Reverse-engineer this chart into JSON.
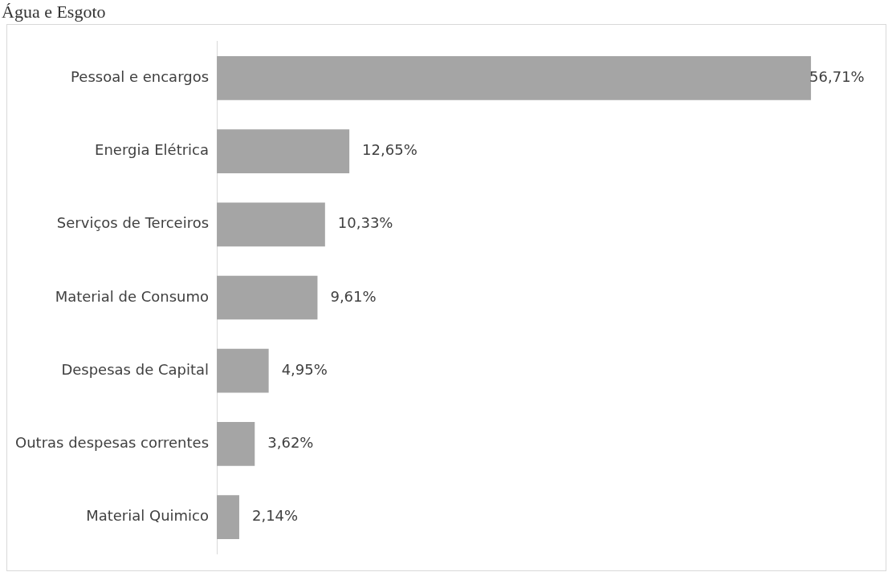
{
  "chart_data": {
    "type": "bar",
    "orientation": "horizontal",
    "title": "Água e Esgoto",
    "categories": [
      "Pessoal e encargos",
      "Energia Elétrica",
      "Serviços de Terceiros",
      "Material de Consumo",
      "Despesas de Capital",
      "Outras despesas correntes",
      "Material Quimico"
    ],
    "values": [
      56.71,
      12.65,
      10.33,
      9.61,
      4.95,
      3.62,
      2.14
    ],
    "value_labels": [
      "56,71%",
      "12,65%",
      "10,33%",
      "9,61%",
      "4,95%",
      "3,62%",
      "2,14%"
    ],
    "color": "#a5a5a5"
  }
}
